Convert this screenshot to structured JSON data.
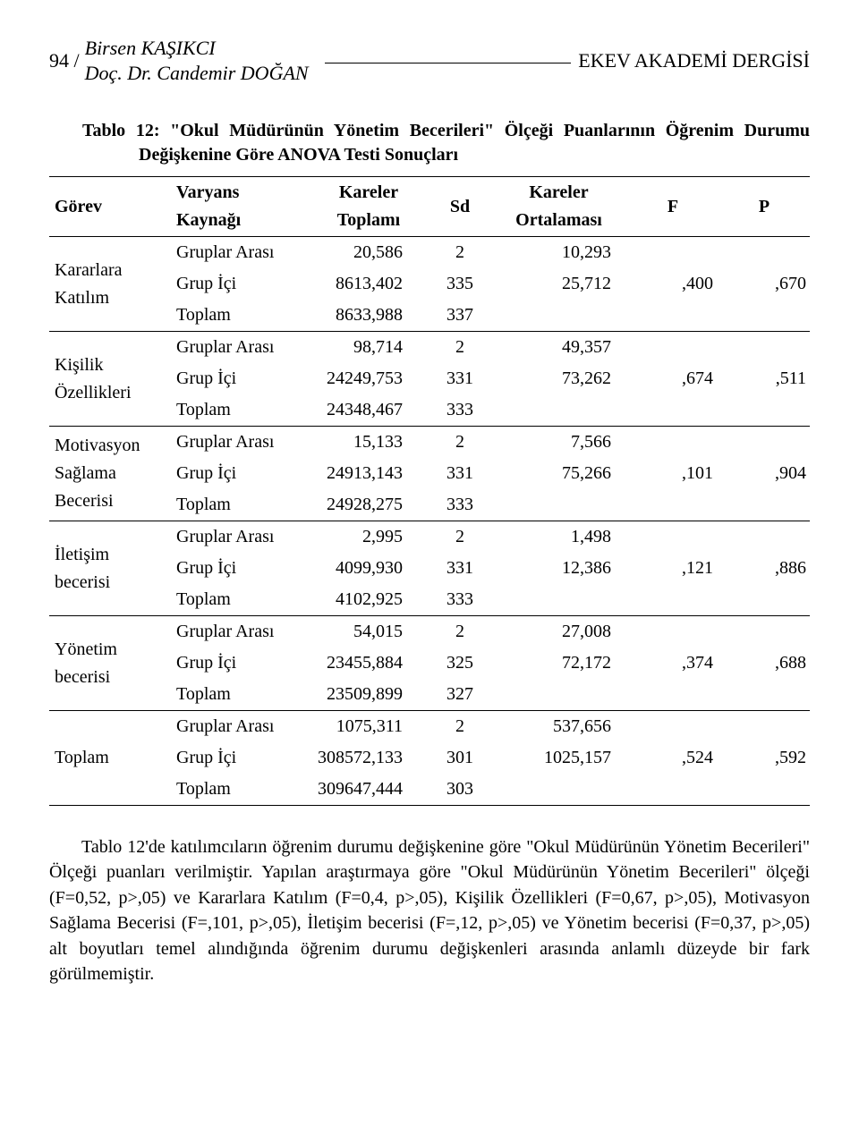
{
  "header": {
    "page_number": "94 /",
    "author_line1": "Birsen KAŞIKCI",
    "author_line2": "Doç. Dr. Candemir DOĞAN",
    "journal": "EKEV AKADEMİ DERGİSİ"
  },
  "table": {
    "caption_label": "Tablo 12:",
    "caption_text": " \"Okul Müdürünün Yönetim Becerileri\" Ölçeği Puanlarının Öğrenim Durumu Değişkenine Göre ANOVA Testi Sonuçları",
    "columns": {
      "gorev": "Görev",
      "vk_line1": "Varyans",
      "vk_line2": "Kaynağı",
      "kt_line1": "Kareler",
      "kt_line2": "Toplamı",
      "sd": "Sd",
      "ko_line1": "Kareler",
      "ko_line2": "Ortalaması",
      "f": "F",
      "p": "P"
    },
    "groups": [
      {
        "label": "Kararlara Katılım",
        "rows": [
          {
            "vk": "Gruplar Arası",
            "kt": "20,586",
            "sd": "2",
            "ko": "10,293",
            "f": "",
            "p": ""
          },
          {
            "vk": "Grup İçi",
            "kt": "8613,402",
            "sd": "335",
            "ko": "25,712",
            "f": ",400",
            "p": ",670"
          },
          {
            "vk": "Toplam",
            "kt": "8633,988",
            "sd": "337",
            "ko": "",
            "f": "",
            "p": ""
          }
        ]
      },
      {
        "label": "Kişilik Özellikleri",
        "rows": [
          {
            "vk": "Gruplar Arası",
            "kt": "98,714",
            "sd": "2",
            "ko": "49,357",
            "f": "",
            "p": ""
          },
          {
            "vk": "Grup İçi",
            "kt": "24249,753",
            "sd": "331",
            "ko": "73,262",
            "f": ",674",
            "p": ",511"
          },
          {
            "vk": "Toplam",
            "kt": "24348,467",
            "sd": "333",
            "ko": "",
            "f": "",
            "p": ""
          }
        ]
      },
      {
        "label": "Motivasyon Sağlama Becerisi",
        "rows": [
          {
            "vk": "Gruplar Arası",
            "kt": "15,133",
            "sd": "2",
            "ko": "7,566",
            "f": "",
            "p": ""
          },
          {
            "vk": "Grup İçi",
            "kt": "24913,143",
            "sd": "331",
            "ko": "75,266",
            "f": ",101",
            "p": ",904"
          },
          {
            "vk": "Toplam",
            "kt": "24928,275",
            "sd": "333",
            "ko": "",
            "f": "",
            "p": ""
          }
        ]
      },
      {
        "label": "İletişim becerisi",
        "rows": [
          {
            "vk": "Gruplar Arası",
            "kt": "2,995",
            "sd": "2",
            "ko": "1,498",
            "f": "",
            "p": ""
          },
          {
            "vk": "Grup İçi",
            "kt": "4099,930",
            "sd": "331",
            "ko": "12,386",
            "f": ",121",
            "p": ",886"
          },
          {
            "vk": "Toplam",
            "kt": "4102,925",
            "sd": "333",
            "ko": "",
            "f": "",
            "p": ""
          }
        ]
      },
      {
        "label": "Yönetim becerisi",
        "rows": [
          {
            "vk": "Gruplar Arası",
            "kt": "54,015",
            "sd": "2",
            "ko": "27,008",
            "f": "",
            "p": ""
          },
          {
            "vk": "Grup İçi",
            "kt": "23455,884",
            "sd": "325",
            "ko": "72,172",
            "f": ",374",
            "p": ",688"
          },
          {
            "vk": "Toplam",
            "kt": "23509,899",
            "sd": "327",
            "ko": "",
            "f": "",
            "p": ""
          }
        ]
      },
      {
        "label": "Toplam",
        "rows": [
          {
            "vk": "Gruplar Arası",
            "kt": "1075,311",
            "sd": "2",
            "ko": "537,656",
            "f": "",
            "p": ""
          },
          {
            "vk": "Grup İçi",
            "kt": "308572,133",
            "sd": "301",
            "ko": "1025,157",
            "f": ",524",
            "p": ",592"
          },
          {
            "vk": "Toplam",
            "kt": "309647,444",
            "sd": "303",
            "ko": "",
            "f": "",
            "p": ""
          }
        ]
      }
    ],
    "col_widths": [
      "16%",
      "18%",
      "16%",
      "8%",
      "18%",
      "12%",
      "12%"
    ]
  },
  "paragraph": "Tablo 12'de katılımcıların öğrenim durumu değişkenine göre \"Okul Müdürünün Yönetim Becerileri\" Ölçeği puanları verilmiştir. Yapılan araştırmaya göre \"Okul Müdürünün Yönetim Becerileri\" ölçeği (F=0,52, p>,05) ve Kararlara Katılım (F=0,4, p>,05), Kişilik Özellikleri (F=0,67, p>,05), Motivasyon Sağlama Becerisi (F=,101, p>,05), İletişim becerisi (F=,12, p>,05)  ve Yönetim becerisi (F=0,37, p>,05)  alt boyutları temel alındığında öğrenim durumu değişkenleri arasında anlamlı düzeyde bir fark görülmemiştir."
}
